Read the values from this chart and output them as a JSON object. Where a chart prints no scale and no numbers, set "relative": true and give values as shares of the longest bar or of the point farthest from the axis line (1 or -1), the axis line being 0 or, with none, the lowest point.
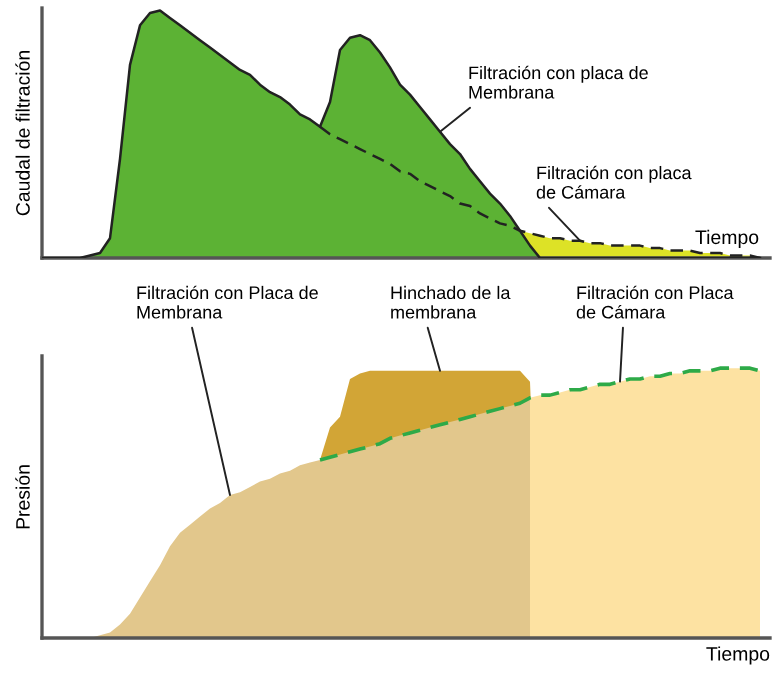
{
  "chart_data": [
    {
      "type": "area",
      "relative": true,
      "xlabel": "Tiempo",
      "ylabel": "Caudal de filtración",
      "categories": [
        null,
        null,
        null,
        null,
        null,
        null,
        null,
        null,
        null,
        null,
        null,
        null,
        null,
        null,
        null,
        null,
        null,
        null,
        null,
        null,
        null,
        null,
        null,
        null,
        null,
        null,
        null,
        null,
        null,
        null,
        null,
        null,
        null,
        null,
        null,
        null,
        null,
        null,
        null,
        null,
        null,
        null,
        null,
        null,
        null,
        null,
        null,
        null,
        null,
        null,
        null,
        null,
        null,
        null,
        null,
        null,
        null,
        null,
        null,
        null,
        null,
        null,
        null,
        null,
        null,
        null,
        null,
        null,
        null,
        null,
        null,
        null,
        null
      ],
      "series": [
        {
          "name": "Filtración con placa de Cámara",
          "color": "#dde226",
          "line_style": "dashed",
          "values": [
            null,
            null,
            null,
            null,
            null,
            null,
            null,
            null,
            null,
            null,
            null,
            null,
            null,
            null,
            null,
            null,
            null,
            null,
            null,
            null,
            null,
            null,
            null,
            null,
            null,
            null,
            null,
            null,
            0.53,
            0.5,
            0.48,
            0.46,
            0.44,
            0.42,
            0.4,
            0.38,
            0.35,
            0.34,
            0.31,
            0.29,
            0.27,
            0.25,
            0.22,
            0.21,
            0.18,
            0.16,
            0.14,
            0.13,
            0.11,
            0.1,
            0.09,
            0.08,
            0.08,
            0.07,
            0.07,
            0.06,
            0.06,
            0.05,
            0.05,
            0.05,
            0.05,
            0.04,
            0.04,
            0.03,
            0.03,
            0.03,
            0.02,
            0.02,
            0.02,
            0.01,
            0.01,
            0.01,
            0
          ]
        },
        {
          "name": "Filtración con placa de Membrana",
          "color": "#5cb234",
          "line_style": "solid",
          "values": [
            0,
            0,
            0,
            0,
            0,
            0.01,
            0.02,
            0.08,
            0.4,
            0.78,
            0.94,
            0.99,
            1.0,
            0.97,
            0.94,
            0.91,
            0.88,
            0.85,
            0.82,
            0.79,
            0.76,
            0.74,
            0.7,
            0.67,
            0.65,
            0.62,
            0.58,
            0.56,
            0.53,
            0.63,
            0.84,
            0.89,
            0.9,
            0.88,
            0.83,
            0.77,
            0.7,
            0.66,
            0.61,
            0.56,
            0.51,
            0.46,
            0.42,
            0.36,
            0.31,
            0.26,
            0.22,
            0.17,
            0.11,
            0.05,
            0,
            0,
            0,
            0,
            0,
            0,
            0,
            0,
            0,
            0,
            0,
            0,
            0,
            0,
            0,
            0,
            0,
            0,
            0,
            0,
            0,
            0,
            0
          ]
        }
      ]
    },
    {
      "type": "area",
      "relative": true,
      "xlabel": "Tiempo",
      "ylabel": "Presión",
      "categories": [
        null,
        null,
        null,
        null,
        null,
        null,
        null,
        null,
        null,
        null,
        null,
        null,
        null,
        null,
        null,
        null,
        null,
        null,
        null,
        null,
        null,
        null,
        null,
        null,
        null,
        null,
        null,
        null,
        null,
        null,
        null,
        null,
        null,
        null,
        null,
        null,
        null,
        null,
        null,
        null,
        null,
        null,
        null,
        null,
        null,
        null,
        null,
        null,
        null,
        null,
        null,
        null,
        null,
        null,
        null,
        null,
        null,
        null,
        null,
        null,
        null,
        null,
        null,
        null,
        null,
        null,
        null,
        null,
        null,
        null,
        null,
        null,
        null
      ],
      "series": [
        {
          "name": "Hinchado de la membrana",
          "color": "#d2a536",
          "values": [
            null,
            null,
            null,
            null,
            null,
            null,
            null,
            null,
            null,
            null,
            null,
            null,
            null,
            null,
            null,
            null,
            null,
            null,
            null,
            null,
            null,
            null,
            null,
            null,
            null,
            null,
            null,
            null,
            0.66,
            0.78,
            0.82,
            0.96,
            0.98,
            0.99,
            0.99,
            0.99,
            0.99,
            0.99,
            0.99,
            0.99,
            0.99,
            0.99,
            0.99,
            0.99,
            0.99,
            0.99,
            0.99,
            0.99,
            0.99,
            0.95,
            0,
            null,
            null,
            null,
            null,
            null,
            null,
            null,
            null,
            null,
            null,
            null,
            null,
            null,
            null,
            null,
            null,
            null,
            null,
            null,
            null,
            null,
            null
          ]
        },
        {
          "name": "Filtración con Placa de Membrana",
          "color": "#e2c78c",
          "values": [
            0,
            0,
            0,
            0,
            0,
            0,
            0.01,
            0.02,
            0.05,
            0.09,
            0.15,
            0.21,
            0.27,
            0.34,
            0.39,
            0.42,
            0.45,
            0.48,
            0.5,
            0.53,
            0.54,
            0.56,
            0.58,
            0.59,
            0.61,
            0.62,
            0.64,
            0.65,
            0.66,
            0.67,
            0.68,
            0.69,
            0.7,
            0.71,
            0.72,
            0.74,
            0.75,
            0.76,
            0.77,
            0.78,
            0.79,
            0.8,
            0.81,
            0.82,
            0.83,
            0.84,
            0.85,
            0.86,
            0.87,
            0.89,
            0,
            0,
            0,
            0,
            0,
            0,
            0,
            0,
            0,
            0,
            0,
            0,
            0,
            0,
            0,
            0,
            0,
            0,
            0,
            0,
            0,
            0,
            0
          ]
        },
        {
          "name": "Filtración con Placa de Cámara",
          "color": "#fde2a2",
          "values": [
            null,
            null,
            null,
            null,
            null,
            null,
            null,
            null,
            null,
            null,
            null,
            null,
            null,
            null,
            null,
            null,
            null,
            null,
            null,
            null,
            null,
            null,
            null,
            null,
            null,
            null,
            null,
            null,
            null,
            null,
            null,
            null,
            null,
            null,
            null,
            null,
            null,
            null,
            null,
            null,
            null,
            null,
            null,
            null,
            null,
            null,
            null,
            null,
            null,
            0.89,
            0.9,
            0.9,
            0.91,
            0.92,
            0.92,
            0.93,
            0.94,
            0.94,
            0.95,
            0.96,
            0.96,
            0.97,
            0.97,
            0.98,
            0.98,
            0.99,
            0.99,
            0.99,
            1.0,
            1.0,
            1.0,
            1.0,
            0.99
          ]
        },
        {
          "type": "line",
          "color": "#2eaa48",
          "line_style": "dashed",
          "values": [
            null,
            null,
            null,
            null,
            null,
            null,
            null,
            null,
            null,
            null,
            null,
            null,
            null,
            null,
            null,
            null,
            null,
            null,
            null,
            null,
            null,
            null,
            null,
            null,
            null,
            null,
            null,
            null,
            0.66,
            0.67,
            0.68,
            0.69,
            0.7,
            0.71,
            0.72,
            0.74,
            0.75,
            0.76,
            0.77,
            0.78,
            0.79,
            0.8,
            0.81,
            0.82,
            0.83,
            0.84,
            0.85,
            0.86,
            0.87,
            0.89,
            0.9,
            0.9,
            0.91,
            0.92,
            0.92,
            0.93,
            0.94,
            0.94,
            0.95,
            0.96,
            0.96,
            0.97,
            0.97,
            0.98,
            0.98,
            0.99,
            0.99,
            0.99,
            1.0,
            1.0,
            1.0,
            1.0,
            0.99
          ]
        }
      ]
    }
  ]
}
